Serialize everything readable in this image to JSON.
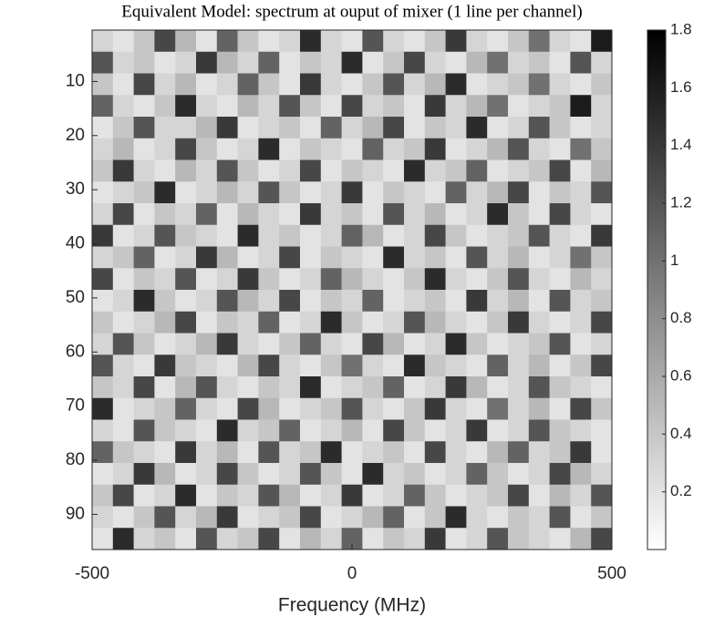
{
  "chart_data": {
    "type": "heatmap",
    "title": "Equivalent Model: spectrum at ouput of mixer (1 line per channel)",
    "x_label": "Frequency (MHz)",
    "x": [
      -480,
      -440,
      -400,
      -360,
      -320,
      -280,
      -240,
      -200,
      -160,
      -120,
      -80,
      -40,
      0,
      40,
      80,
      120,
      160,
      200,
      240,
      280,
      320,
      360,
      400,
      440,
      480
    ],
    "y": [
      2.5,
      6.5,
      10.5,
      14.5,
      18.5,
      22.5,
      26.5,
      30.5,
      34.5,
      38.5,
      42.5,
      46.5,
      50.5,
      54.5,
      58.5,
      62.5,
      66.5,
      70.5,
      74.5,
      78.5,
      82.5,
      86.5,
      90.5,
      94.5
    ],
    "z": [
      [
        0.3,
        0.2,
        0.4,
        1.3,
        0.5,
        0.2,
        1.1,
        0.4,
        0.2,
        0.3,
        1.5,
        0.3,
        0.2,
        1.2,
        0.3,
        0.2,
        0.4,
        1.4,
        0.3,
        0.2,
        0.4,
        1.0,
        0.3,
        0.2,
        1.6
      ],
      [
        1.2,
        0.3,
        0.4,
        0.2,
        0.3,
        1.4,
        0.5,
        0.3,
        1.1,
        0.2,
        0.4,
        0.3,
        1.5,
        0.2,
        0.4,
        1.3,
        0.3,
        0.2,
        0.5,
        1.0,
        0.3,
        0.4,
        0.2,
        1.2,
        0.3
      ],
      [
        0.4,
        0.2,
        1.3,
        0.3,
        0.5,
        0.2,
        0.3,
        1.1,
        0.4,
        0.2,
        1.4,
        0.3,
        0.2,
        0.4,
        1.2,
        0.3,
        0.5,
        1.5,
        0.2,
        0.3,
        0.4,
        1.0,
        0.3,
        0.2,
        0.4
      ],
      [
        1.1,
        0.3,
        0.2,
        0.4,
        1.5,
        0.3,
        0.2,
        0.5,
        0.3,
        1.2,
        0.4,
        0.2,
        1.3,
        0.3,
        0.4,
        0.2,
        1.4,
        0.3,
        0.5,
        1.0,
        0.2,
        0.3,
        0.4,
        1.6,
        0.3
      ],
      [
        0.2,
        0.4,
        1.2,
        0.3,
        0.3,
        0.5,
        1.4,
        0.2,
        0.3,
        0.4,
        0.2,
        1.1,
        0.3,
        0.5,
        1.3,
        0.2,
        0.4,
        0.3,
        1.5,
        0.2,
        0.3,
        1.2,
        0.4,
        0.2,
        0.3
      ],
      [
        0.3,
        0.5,
        0.2,
        0.3,
        1.3,
        0.4,
        0.2,
        0.3,
        1.5,
        0.2,
        0.4,
        0.3,
        0.2,
        1.1,
        0.3,
        0.4,
        1.4,
        0.2,
        0.3,
        0.5,
        1.2,
        0.3,
        0.2,
        1.0,
        0.4
      ],
      [
        0.4,
        1.4,
        0.3,
        0.2,
        0.5,
        0.3,
        1.2,
        0.4,
        0.2,
        0.3,
        1.3,
        0.2,
        0.4,
        0.3,
        0.2,
        1.5,
        0.3,
        0.4,
        1.1,
        0.2,
        0.3,
        0.4,
        1.3,
        0.2,
        0.5
      ],
      [
        0.2,
        0.3,
        0.4,
        1.5,
        0.2,
        0.3,
        0.5,
        0.3,
        1.2,
        0.4,
        0.2,
        0.3,
        1.4,
        0.2,
        0.4,
        0.3,
        0.2,
        1.1,
        0.3,
        0.5,
        1.3,
        0.2,
        0.4,
        0.3,
        1.2
      ],
      [
        0.3,
        1.3,
        0.2,
        0.4,
        0.3,
        1.1,
        0.2,
        0.5,
        0.3,
        0.2,
        1.4,
        0.3,
        0.4,
        0.2,
        1.2,
        0.3,
        0.5,
        0.2,
        0.3,
        1.5,
        0.4,
        0.2,
        1.3,
        0.3,
        0.2
      ],
      [
        1.4,
        0.2,
        0.3,
        1.2,
        0.4,
        0.3,
        0.2,
        1.5,
        0.3,
        0.4,
        0.2,
        0.3,
        1.1,
        0.5,
        0.2,
        0.3,
        1.3,
        0.4,
        0.2,
        0.3,
        0.4,
        1.2,
        0.3,
        0.2,
        1.4
      ],
      [
        0.3,
        0.4,
        1.1,
        0.2,
        0.3,
        1.4,
        0.5,
        0.2,
        0.3,
        1.3,
        0.2,
        0.4,
        0.3,
        0.2,
        1.5,
        0.3,
        0.4,
        0.2,
        1.2,
        0.3,
        0.5,
        0.2,
        0.3,
        1.0,
        0.4
      ],
      [
        1.3,
        0.2,
        0.4,
        0.3,
        1.2,
        0.2,
        0.3,
        1.4,
        0.4,
        0.2,
        0.3,
        1.1,
        0.5,
        0.3,
        0.2,
        0.4,
        1.5,
        0.3,
        0.2,
        0.4,
        1.2,
        0.3,
        0.2,
        0.5,
        0.3
      ],
      [
        0.2,
        0.3,
        1.5,
        0.4,
        0.2,
        0.3,
        1.2,
        0.5,
        0.3,
        1.3,
        0.2,
        0.4,
        0.3,
        1.1,
        0.2,
        0.3,
        0.4,
        0.2,
        1.4,
        0.3,
        0.5,
        0.2,
        1.2,
        0.3,
        0.4
      ],
      [
        0.4,
        0.2,
        0.3,
        0.5,
        1.3,
        0.2,
        0.4,
        0.3,
        1.1,
        0.2,
        0.3,
        1.5,
        0.4,
        0.2,
        0.3,
        1.2,
        0.5,
        0.3,
        0.2,
        0.4,
        1.4,
        0.3,
        0.2,
        0.3,
        1.3
      ],
      [
        0.3,
        1.2,
        0.4,
        0.2,
        0.3,
        0.5,
        1.4,
        0.3,
        0.2,
        0.4,
        1.1,
        0.3,
        0.2,
        1.3,
        0.5,
        0.2,
        0.3,
        1.5,
        0.4,
        0.2,
        0.3,
        0.4,
        1.2,
        0.2,
        0.3
      ],
      [
        1.2,
        0.3,
        0.2,
        1.4,
        0.4,
        0.3,
        0.2,
        0.5,
        1.3,
        0.3,
        0.2,
        0.4,
        1.0,
        0.3,
        0.2,
        1.5,
        0.4,
        0.3,
        0.2,
        1.1,
        0.3,
        0.5,
        0.2,
        0.4,
        1.3
      ],
      [
        0.4,
        0.3,
        1.3,
        0.2,
        0.5,
        1.2,
        0.3,
        0.2,
        0.4,
        0.3,
        1.5,
        0.2,
        0.3,
        0.4,
        1.1,
        0.2,
        0.3,
        1.4,
        0.5,
        0.2,
        0.3,
        1.2,
        0.4,
        0.3,
        0.2
      ],
      [
        1.5,
        0.2,
        0.3,
        0.4,
        1.1,
        0.3,
        0.2,
        1.3,
        0.5,
        0.2,
        0.3,
        0.4,
        1.2,
        0.3,
        0.2,
        0.4,
        1.4,
        0.3,
        0.2,
        1.0,
        0.3,
        0.5,
        0.2,
        1.3,
        0.4
      ],
      [
        0.3,
        0.2,
        1.2,
        0.4,
        0.3,
        0.2,
        1.5,
        0.3,
        0.4,
        1.1,
        0.2,
        0.3,
        0.5,
        0.2,
        1.3,
        0.4,
        0.2,
        0.3,
        1.4,
        0.2,
        0.3,
        1.2,
        0.4,
        0.3,
        0.2
      ],
      [
        1.1,
        0.4,
        0.3,
        0.2,
        1.4,
        0.3,
        0.5,
        0.2,
        1.2,
        0.3,
        0.4,
        1.5,
        0.2,
        0.3,
        0.4,
        0.2,
        1.3,
        0.3,
        0.2,
        0.5,
        1.1,
        0.3,
        0.4,
        1.4,
        0.2
      ],
      [
        0.2,
        0.3,
        1.4,
        0.5,
        0.2,
        0.3,
        1.3,
        0.4,
        0.2,
        0.3,
        1.2,
        0.4,
        0.2,
        1.5,
        0.3,
        0.4,
        0.2,
        0.3,
        1.1,
        0.4,
        0.2,
        0.3,
        1.3,
        0.5,
        0.3
      ],
      [
        0.4,
        1.3,
        0.2,
        0.3,
        1.5,
        0.2,
        0.4,
        0.3,
        1.2,
        0.5,
        0.2,
        0.3,
        1.4,
        0.2,
        0.3,
        1.1,
        0.4,
        0.2,
        0.3,
        0.4,
        1.3,
        0.2,
        0.5,
        0.3,
        1.2
      ],
      [
        0.3,
        0.2,
        0.4,
        1.2,
        0.3,
        0.5,
        1.4,
        0.2,
        0.3,
        0.4,
        1.3,
        0.2,
        0.3,
        0.5,
        1.1,
        0.2,
        0.4,
        1.5,
        0.3,
        0.2,
        0.4,
        0.3,
        1.2,
        0.2,
        0.4
      ],
      [
        0.2,
        1.5,
        0.3,
        0.4,
        0.2,
        1.2,
        0.3,
        0.4,
        1.3,
        0.2,
        0.5,
        0.3,
        1.1,
        0.2,
        0.4,
        0.3,
        1.4,
        0.2,
        0.3,
        1.2,
        0.4,
        0.3,
        0.2,
        0.5,
        1.3
      ]
    ],
    "xlim": [
      -500,
      500
    ],
    "xticks": [
      -500,
      0,
      500
    ],
    "ylim": [
      0.5,
      96.5
    ],
    "yticks": [
      10,
      20,
      30,
      40,
      50,
      60,
      70,
      80,
      90
    ],
    "clim": [
      0,
      1.8
    ],
    "cticks": [
      0.2,
      0.4,
      0.6,
      0.8,
      1,
      1.2,
      1.4,
      1.6,
      1.8
    ]
  }
}
